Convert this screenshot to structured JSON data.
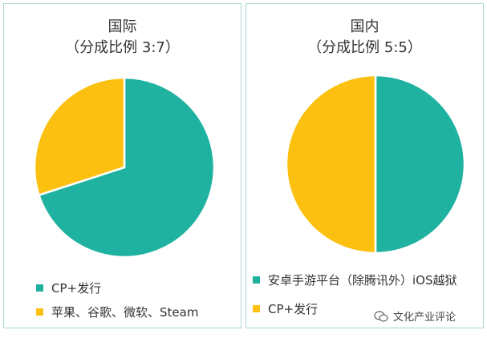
{
  "chart_data": [
    {
      "type": "pie",
      "title": "国际",
      "subtitle": "（分成比例 3:7）",
      "series": [
        {
          "name": "CP+发行",
          "value": 70,
          "color": "#20b2a0"
        },
        {
          "name": "苹果、谷歌、微软、Steam",
          "value": 30,
          "color": "#fcc010"
        }
      ],
      "legend_position": "bottom-left"
    },
    {
      "type": "pie",
      "title": "国内",
      "subtitle": "（分成比例 5:5）",
      "series": [
        {
          "name": "安卓手游平台（除腾讯外）iOS越狱",
          "value": 50,
          "color": "#20b2a0"
        },
        {
          "name": "CP+发行",
          "value": 50,
          "color": "#fcc010"
        }
      ],
      "legend_position": "bottom-left"
    }
  ],
  "watermark": {
    "text": "文化产业评论",
    "icon": "wechat-icon"
  }
}
